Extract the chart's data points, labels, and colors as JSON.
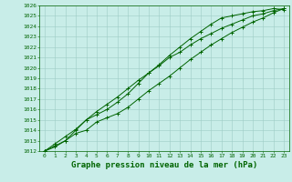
{
  "x": [
    0,
    1,
    2,
    3,
    4,
    5,
    6,
    7,
    8,
    9,
    10,
    11,
    12,
    13,
    14,
    15,
    16,
    17,
    18,
    19,
    20,
    21,
    22,
    23
  ],
  "line1": [
    1012,
    1012.5,
    1013.0,
    1013.7,
    1014.0,
    1014.8,
    1015.2,
    1015.6,
    1016.2,
    1017.0,
    1017.8,
    1018.5,
    1019.2,
    1020.0,
    1020.8,
    1021.5,
    1022.2,
    1022.8,
    1023.4,
    1023.9,
    1024.4,
    1024.8,
    1025.3,
    1025.7
  ],
  "line2": [
    1012,
    1012.4,
    1013.0,
    1014.0,
    1015.0,
    1015.8,
    1016.5,
    1017.2,
    1018.0,
    1018.8,
    1019.5,
    1020.2,
    1021.0,
    1021.5,
    1022.2,
    1022.8,
    1023.3,
    1023.8,
    1024.2,
    1024.6,
    1025.0,
    1025.2,
    1025.5,
    1025.7
  ],
  "line3": [
    1012,
    1012.7,
    1013.4,
    1014.1,
    1015.0,
    1015.5,
    1016.0,
    1016.7,
    1017.5,
    1018.5,
    1019.5,
    1020.3,
    1021.2,
    1022.0,
    1022.8,
    1023.5,
    1024.2,
    1024.8,
    1025.0,
    1025.2,
    1025.4,
    1025.5,
    1025.7,
    1025.6
  ],
  "ylim": [
    1012,
    1026
  ],
  "xlim_min": -0.5,
  "xlim_max": 23.5,
  "yticks": [
    1012,
    1013,
    1014,
    1015,
    1016,
    1017,
    1018,
    1019,
    1020,
    1021,
    1022,
    1023,
    1024,
    1025,
    1026
  ],
  "xticks": [
    0,
    1,
    2,
    3,
    4,
    5,
    6,
    7,
    8,
    9,
    10,
    11,
    12,
    13,
    14,
    15,
    16,
    17,
    18,
    19,
    20,
    21,
    22,
    23
  ],
  "xlabel": "Graphe pression niveau de la mer (hPa)",
  "line_color": "#006400",
  "bg_color": "#c8ede8",
  "grid_color": "#9eccc5",
  "marker": "+",
  "marker_size": 3,
  "line_width": 0.7,
  "tick_fontsize": 4.5,
  "xlabel_fontsize": 6.5
}
